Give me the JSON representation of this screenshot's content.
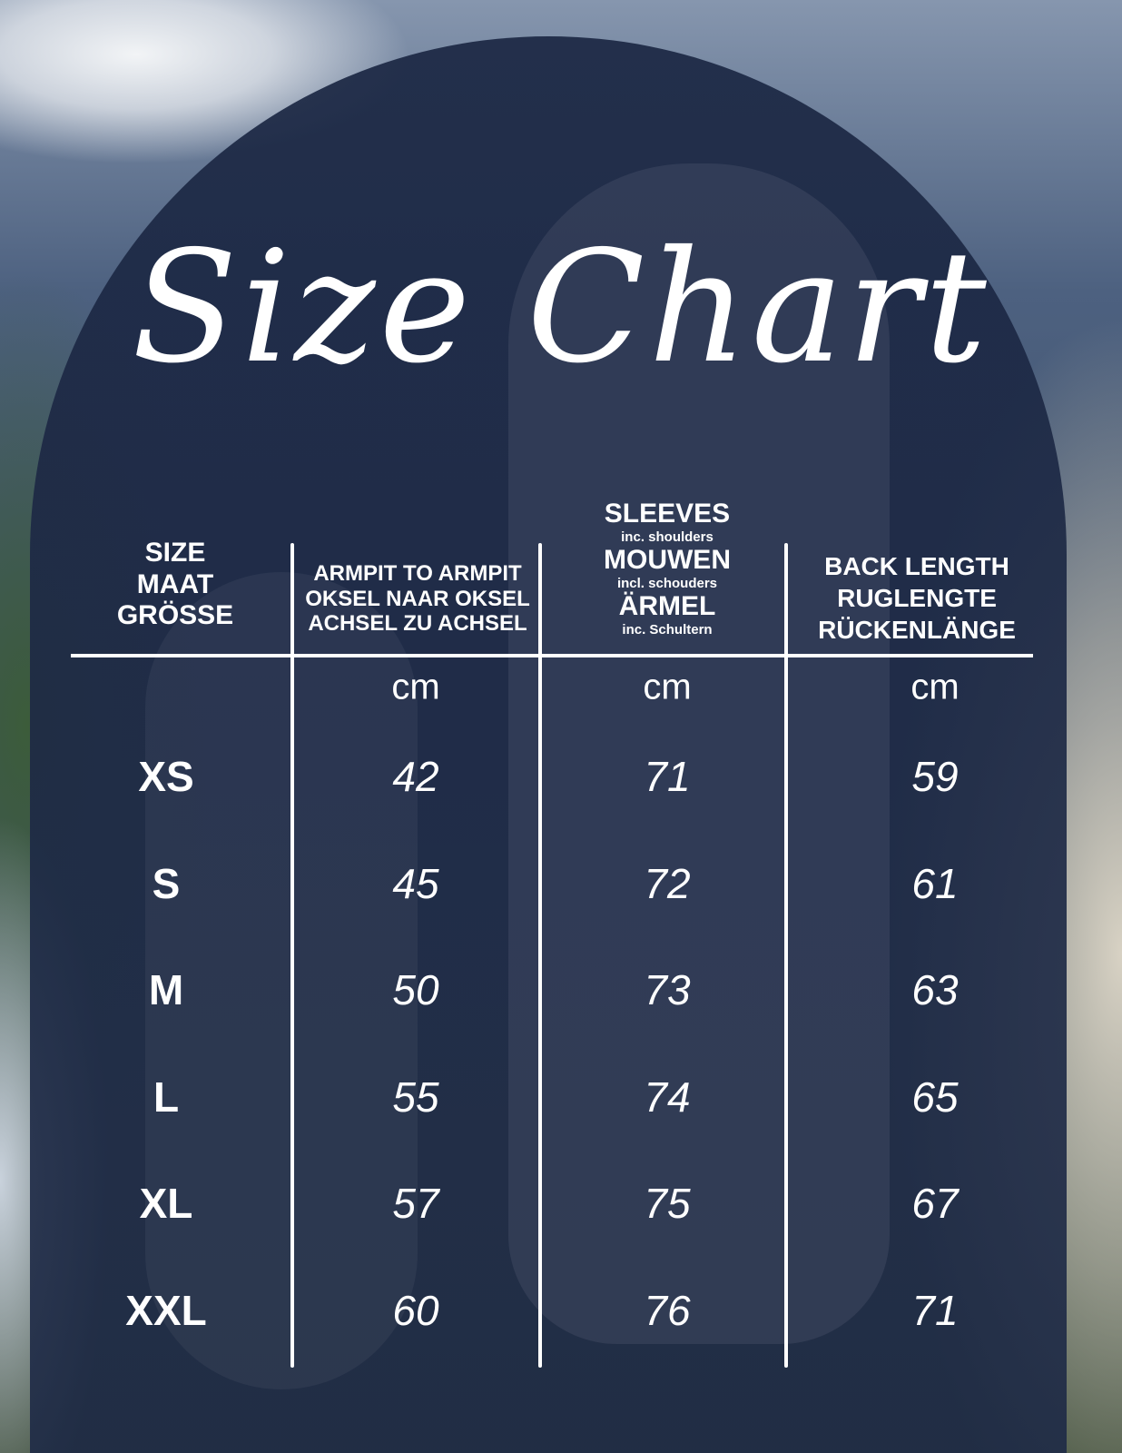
{
  "title": "Size Chart",
  "headers": {
    "size": [
      "SIZE",
      "MAAT",
      "GRÖSSE"
    ],
    "armpit": [
      "ARMPIT TO ARMPIT",
      "OKSEL NAAR OKSEL",
      "ACHSEL ZU ACHSEL"
    ],
    "sleeves": {
      "l1": "SLEEVES",
      "s1": "inc. shoulders",
      "l2": "MOUWEN",
      "s2": "incl. schouders",
      "l3": "ÄRMEL",
      "s3": "inc. Schultern"
    },
    "back": [
      "BACK LENGTH",
      "RUGLENGTE",
      "RÜCKENLÄNGE"
    ]
  },
  "unit": "cm",
  "chart_data": {
    "type": "table",
    "columns": [
      "Size",
      "Armpit to armpit (cm)",
      "Sleeves inc. shoulders (cm)",
      "Back length (cm)"
    ],
    "rows": [
      [
        "XS",
        "42",
        "71",
        "59"
      ],
      [
        "S",
        "45",
        "72",
        "61"
      ],
      [
        "M",
        "50",
        "73",
        "63"
      ],
      [
        "L",
        "55",
        "74",
        "65"
      ],
      [
        "XL",
        "57",
        "75",
        "67"
      ],
      [
        "XXL",
        "60",
        "76",
        "71"
      ]
    ]
  }
}
